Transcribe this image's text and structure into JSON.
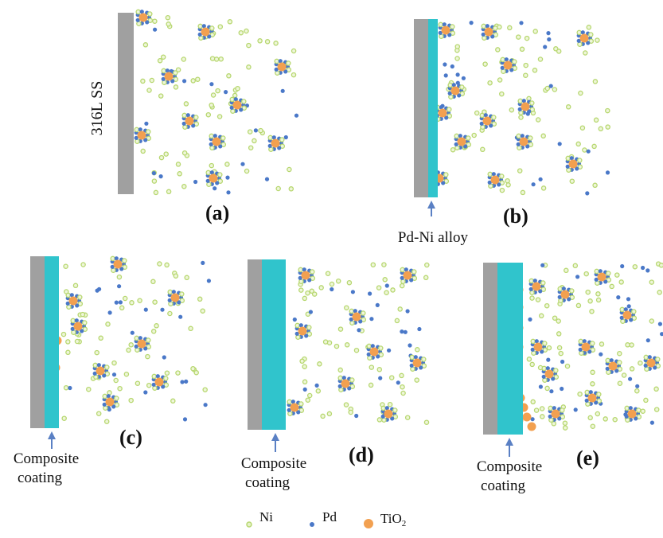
{
  "substrate_label": "316L SS",
  "panels": [
    {
      "id": "a",
      "label": "(a)",
      "caption": [],
      "coating": "none"
    },
    {
      "id": "b",
      "label": "(b)",
      "caption": [
        "Pd-Ni alloy"
      ],
      "coating": "thin"
    },
    {
      "id": "c",
      "label": "(c)",
      "caption": [
        "Composite",
        "coating"
      ],
      "coating": "composite"
    },
    {
      "id": "d",
      "label": "(d)",
      "caption": [
        "Composite",
        "coating"
      ],
      "coating": "composite"
    },
    {
      "id": "e",
      "label": "(e)",
      "caption": [
        "Composite",
        "coating"
      ],
      "coating": "composite"
    }
  ],
  "legend": [
    {
      "key": "ni",
      "label": "Ni",
      "color": "#b7d770"
    },
    {
      "key": "pd",
      "label": "Pd",
      "color": "#4a78c8"
    },
    {
      "key": "tio2",
      "label": "TiO",
      "subscript": "2",
      "color": "#f2a050"
    }
  ],
  "colors": {
    "substrate": "#a0a0a0",
    "coating": "#30c4cc",
    "arrow": "#5a80c4"
  }
}
